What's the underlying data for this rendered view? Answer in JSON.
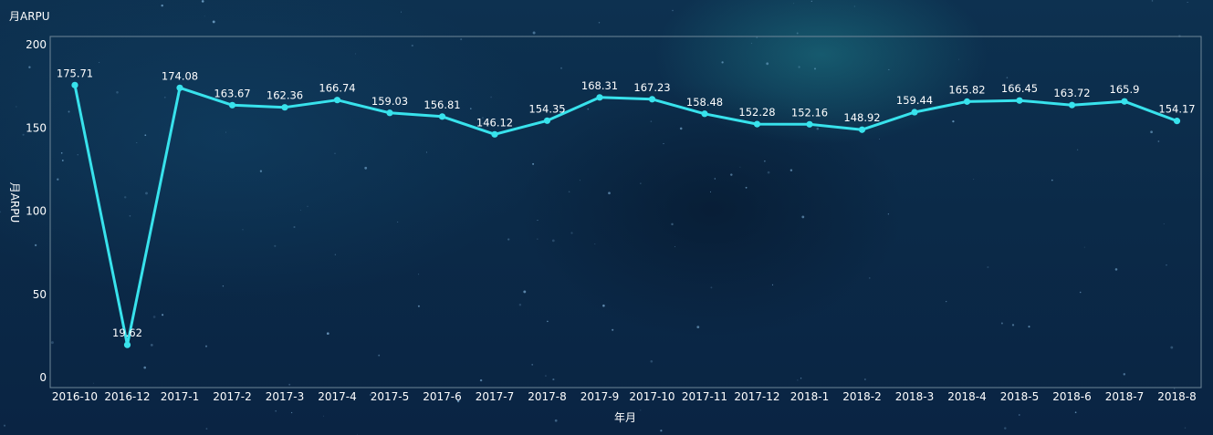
{
  "colors": {
    "line": "#38e2ec",
    "text": "#ffffff",
    "plot_border": "#6e8798"
  },
  "chart_data": {
    "type": "line",
    "title": "月ARPU",
    "xlabel": "年月",
    "ylabel": "月ARPU",
    "ylim": [
      0,
      200
    ],
    "yticks": [
      0,
      50,
      100,
      150,
      200
    ],
    "grid": false,
    "categories": [
      "2016-10",
      "2016-12",
      "2017-1",
      "2017-2",
      "2017-3",
      "2017-4",
      "2017-5",
      "2017-6",
      "2017-7",
      "2017-8",
      "2017-9",
      "2017-10",
      "2017-11",
      "2017-12",
      "2018-1",
      "2018-2",
      "2018-3",
      "2018-4",
      "2018-5",
      "2018-6",
      "2018-7",
      "2018-8"
    ],
    "series": [
      {
        "values": [
          175.71,
          19.62,
          174.08,
          163.67,
          162.36,
          166.74,
          159.03,
          156.81,
          146.12,
          154.35,
          168.31,
          167.23,
          158.48,
          152.28,
          152.16,
          148.92,
          159.44,
          165.82,
          166.45,
          163.72,
          165.9,
          154.17
        ],
        "labels": [
          "175.71",
          "19.62",
          "174.08",
          "163.67",
          "162.36",
          "166.74",
          "159.03",
          "156.81",
          "146.12",
          "154.35",
          "168.31",
          "167.23",
          "158.48",
          "152.28",
          "152.16",
          "148.92",
          "159.44",
          "165.82",
          "166.45",
          "163.72",
          "165.9",
          "154.17"
        ]
      }
    ]
  }
}
